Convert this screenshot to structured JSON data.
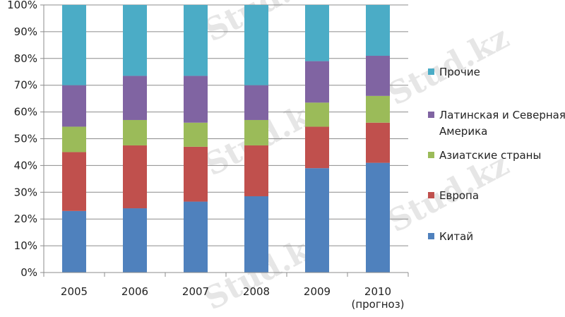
{
  "chart_data": {
    "type": "bar",
    "stacked": true,
    "categories": [
      "2005",
      "2006",
      "2007",
      "2008",
      "2009",
      "2010\n(прогноз)"
    ],
    "series": [
      {
        "name": "Китай",
        "color": "#4F81BD",
        "values": [
          23,
          24,
          26.5,
          28.5,
          39,
          41
        ]
      },
      {
        "name": "Европа",
        "color": "#C0504D",
        "values": [
          22,
          23.5,
          20.5,
          19,
          15.5,
          15
        ]
      },
      {
        "name": "Азиатские страны",
        "color": "#9BBB59",
        "values": [
          9.5,
          9.5,
          9,
          9.5,
          9,
          10
        ]
      },
      {
        "name": "Латинская и Северная Америка",
        "color": "#8064A2",
        "values": [
          15.5,
          16.5,
          17.5,
          13,
          15.5,
          15
        ]
      },
      {
        "name": "Прочие",
        "color": "#4BACC6",
        "values": [
          30,
          26.5,
          26.5,
          30,
          21,
          19
        ]
      }
    ],
    "ylim": [
      0,
      100
    ],
    "yticks": [
      "0%",
      "10%",
      "20%",
      "30%",
      "40%",
      "50%",
      "60%",
      "70%",
      "80%",
      "90%",
      "100%"
    ],
    "grid": true,
    "legend": "right",
    "legend_lines": [
      [
        "Прочие"
      ],
      [
        "Латинская и Северная",
        "Америка"
      ],
      [
        "Азиатские страны"
      ],
      [
        "Европа"
      ],
      [
        "Китай"
      ]
    ]
  },
  "watermark": "Stud.kz"
}
